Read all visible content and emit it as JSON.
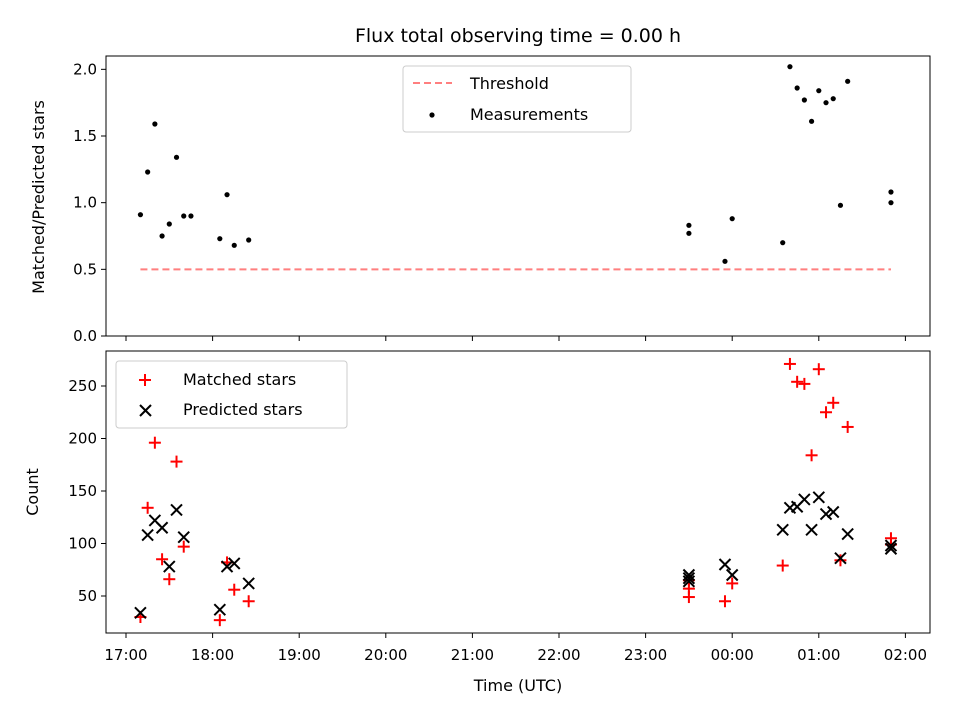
{
  "chart_data": [
    {
      "type": "scatter",
      "title": "Flux total observing time = 0.00 h",
      "xlabel": "",
      "ylabel": "Matched/Predicted stars",
      "ylim": [
        0,
        2.1
      ],
      "yticks": [
        "0.0",
        "0.5",
        "1.0",
        "1.5",
        "2.0"
      ],
      "legend_position": "top-center",
      "series": [
        {
          "name": "Threshold",
          "kind": "line",
          "style": "dashed",
          "color": "#ff7f7f",
          "x": [
            "17:10",
            "01:50"
          ],
          "y": [
            0.5,
            0.5
          ]
        },
        {
          "name": "Measurements",
          "kind": "scatter",
          "marker": "dot",
          "color": "#000000",
          "x": [
            "17:10",
            "17:15",
            "17:20",
            "17:25",
            "17:30",
            "17:35",
            "17:40",
            "17:45",
            "18:05",
            "18:10",
            "18:15",
            "18:25",
            "23:30",
            "23:30",
            "23:55",
            "24:00",
            "24:35",
            "24:40",
            "24:45",
            "24:50",
            "24:55",
            "25:00",
            "25:05",
            "25:10",
            "25:15",
            "25:20",
            "25:50",
            "25:50"
          ],
          "y": [
            0.91,
            1.23,
            1.59,
            0.75,
            0.84,
            1.34,
            0.9,
            0.9,
            0.73,
            1.06,
            0.68,
            0.72,
            0.83,
            0.77,
            0.56,
            0.88,
            0.7,
            2.02,
            1.86,
            1.77,
            1.61,
            1.84,
            1.75,
            1.78,
            0.98,
            1.91,
            1.0,
            1.08
          ]
        }
      ]
    },
    {
      "type": "scatter",
      "title": "",
      "xlabel": "Time (UTC)",
      "ylabel": "Count",
      "ylim": [
        25,
        280
      ],
      "yticks": [
        "50",
        "100",
        "150",
        "200",
        "250"
      ],
      "legend_position": "top-left",
      "x_tick_labels": [
        "17:00",
        "18:00",
        "19:00",
        "20:00",
        "21:00",
        "22:00",
        "23:00",
        "00:00",
        "01:00",
        "02:00"
      ],
      "series": [
        {
          "name": "Matched stars",
          "marker": "plus",
          "color": "#ff0000",
          "x": [
            "17:10",
            "17:15",
            "17:20",
            "17:25",
            "17:30",
            "17:35",
            "17:40",
            "18:05",
            "18:10",
            "18:15",
            "18:25",
            "23:30",
            "23:30",
            "23:30",
            "23:55",
            "24:00",
            "24:35",
            "24:40",
            "24:45",
            "24:50",
            "24:55",
            "25:00",
            "25:05",
            "25:10",
            "25:15",
            "25:20",
            "25:50",
            "25:50"
          ],
          "y": [
            30,
            134,
            196,
            85,
            66,
            178,
            97,
            27,
            82,
            56,
            45,
            49,
            57,
            65,
            45,
            62,
            79,
            271,
            254,
            252,
            184,
            266,
            225,
            234,
            84,
            211,
            105,
            99
          ]
        },
        {
          "name": "Predicted stars",
          "marker": "x",
          "color": "#000000",
          "x": [
            "17:10",
            "17:15",
            "17:20",
            "17:25",
            "17:30",
            "17:35",
            "17:40",
            "18:05",
            "18:10",
            "18:15",
            "18:25",
            "23:30",
            "23:30",
            "23:30",
            "23:55",
            "24:00",
            "24:35",
            "24:40",
            "24:45",
            "24:50",
            "24:55",
            "25:00",
            "25:05",
            "25:10",
            "25:15",
            "25:20",
            "25:50",
            "25:50"
          ],
          "y": [
            34,
            108,
            122,
            115,
            78,
            132,
            106,
            37,
            78,
            81,
            62,
            64,
            67,
            70,
            80,
            70,
            113,
            134,
            135,
            142,
            113,
            144,
            128,
            130,
            86,
            109,
            95,
            98
          ]
        }
      ]
    }
  ]
}
